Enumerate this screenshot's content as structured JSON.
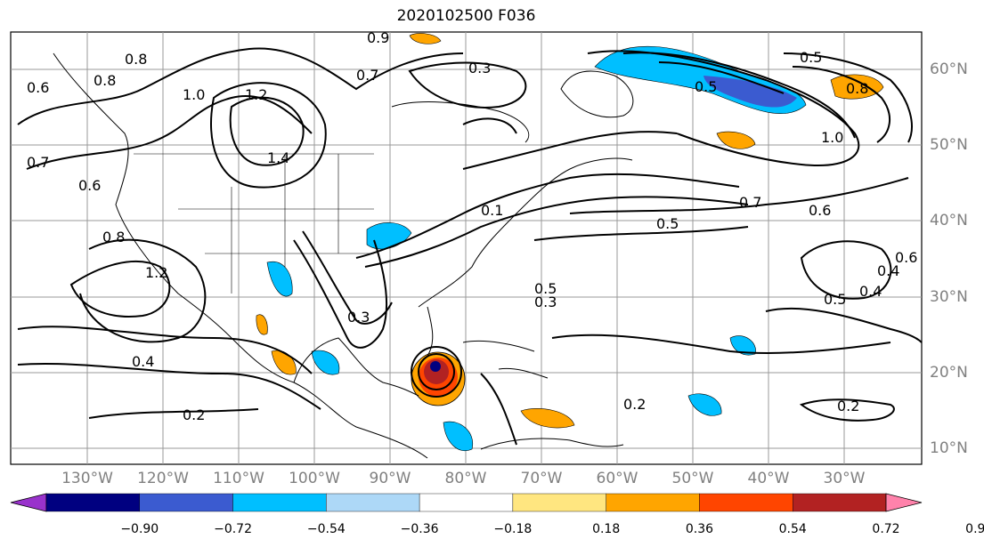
{
  "title": "2020102500 F036",
  "lon_labels": [
    "130°W",
    "120°W",
    "110°W",
    "100°W",
    "90°W",
    "80°W",
    "70°W",
    "60°W",
    "50°W",
    "40°W",
    "30°W"
  ],
  "lat_labels": [
    "60°N",
    "50°N",
    "40°N",
    "30°N",
    "20°N",
    "10°N"
  ],
  "contour_labels": [
    "0.8",
    "0.6",
    "1.0",
    "1.2",
    "1.4",
    "0.7",
    "0.6",
    "0.8",
    "0.4",
    "0.2",
    "1.2",
    "0.7",
    "0.3",
    "0.5",
    "0.4",
    "0.5",
    "0.8",
    "1.0",
    "0.7",
    "0.6",
    "0.5",
    "0.4",
    "0.5",
    "0.6",
    "0.2",
    "0.3",
    "0.2",
    "0.5",
    "0.3",
    "0.1",
    "0.8",
    "0.9"
  ],
  "colorbar": {
    "ticks": [
      "−0.90",
      "−0.72",
      "−0.54",
      "−0.36",
      "−0.18",
      "0.18",
      "0.36",
      "0.54",
      "0.72",
      "0.90"
    ],
    "colors": [
      "#9932cc",
      "#000080",
      "#3b5bd0",
      "#00bfff",
      "#add8f7",
      "#ffffff",
      "#ffe680",
      "#ffa500",
      "#ff4500",
      "#b22222",
      "#ff82ab"
    ]
  }
}
